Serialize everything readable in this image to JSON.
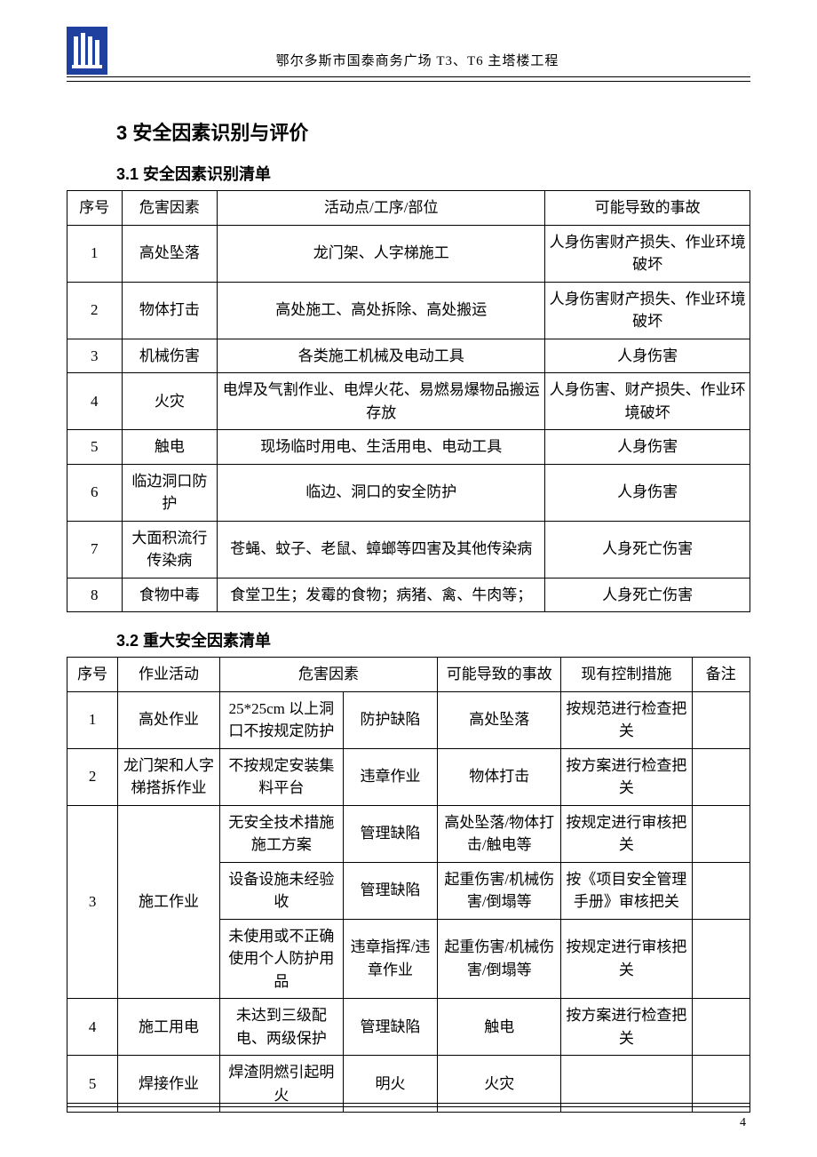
{
  "header": {
    "title": "鄂尔多斯市国泰商务广场 T3、T6 主塔楼工程",
    "logo_bg": "#2040a0",
    "logo_fg": "#ffffff"
  },
  "section_3": "3 安全因素识别与评价",
  "section_3_1": "3.1 安全因素识别清单",
  "section_3_2": "3.2 重大安全因素清单",
  "table1": {
    "columns": [
      "序号",
      "危害因素",
      "活动点/工序/部位",
      "可能导致的事故"
    ],
    "col_widths": [
      "8%",
      "14%",
      "48%",
      "30%"
    ],
    "rows": [
      [
        "1",
        "高处坠落",
        "龙门架、人字梯施工",
        "人身伤害财产损失、作业环境破坏"
      ],
      [
        "2",
        "物体打击",
        "高处施工、高处拆除、高处搬运",
        "人身伤害财产损失、作业环境破坏"
      ],
      [
        "3",
        "机械伤害",
        "各类施工机械及电动工具",
        "人身伤害"
      ],
      [
        "4",
        "火灾",
        "电焊及气割作业、电焊火花、易燃易爆物品搬运存放",
        "人身伤害、财产损失、作业环境破坏"
      ],
      [
        "5",
        "触电",
        "现场临时用电、生活用电、电动工具",
        "人身伤害"
      ],
      [
        "6",
        "临边洞口防护",
        "临边、洞口的安全防护",
        "人身伤害"
      ],
      [
        "7",
        "大面积流行传染病",
        "苍蝇、蚊子、老鼠、蟑螂等四害及其他传染病",
        "人身死亡伤害"
      ],
      [
        "8",
        "食物中毒",
        "食堂卫生；发霉的食物；病猪、禽、牛肉等；",
        "人身死亡伤害"
      ]
    ]
  },
  "table2": {
    "columns": [
      "序号",
      "作业活动",
      "危害因素",
      "可能导致的事故",
      "现有控制措施",
      "备注"
    ],
    "hazard_span_label": "危害因素",
    "col_widths": [
      "7%",
      "14%",
      "17%",
      "13%",
      "17%",
      "18%",
      "8%"
    ],
    "rows": [
      {
        "seq": "1",
        "activity": "高处作业",
        "h1": "25*25cm 以上洞口不按规定防护",
        "h2": "防护缺陷",
        "acc": "高处坠落",
        "ctrl": "按规范进行检查把关",
        "note": ""
      },
      {
        "seq": "2",
        "activity": "龙门架和人字梯搭拆作业",
        "h1": "不按规定安装集料平台",
        "h2": "违章作业",
        "acc": "物体打击",
        "ctrl": "按方案进行检查把关",
        "note": ""
      }
    ],
    "group3": {
      "seq": "3",
      "activity": "施工作业",
      "subrows": [
        {
          "h1": "无安全技术措施施工方案",
          "h2": "管理缺陷",
          "acc": "高处坠落/物体打击/触电等",
          "ctrl": "按规定进行审核把关",
          "note": ""
        },
        {
          "h1": "设备设施未经验收",
          "h2": "管理缺陷",
          "acc": "起重伤害/机械伤害/倒塌等",
          "ctrl": "按《项目安全管理手册》审核把关",
          "note": ""
        },
        {
          "h1": "未使用或不正确使用个人防护用品",
          "h2": "违章指挥/违章作业",
          "acc": "起重伤害/机械伤害/倒塌等",
          "ctrl": "按规定进行审核把关",
          "note": ""
        }
      ]
    },
    "tail": [
      {
        "seq": "4",
        "activity": "施工用电",
        "h1": "未达到三级配电、两级保护",
        "h2": "管理缺陷",
        "acc": "触电",
        "ctrl": "按方案进行检查把关",
        "note": ""
      },
      {
        "seq": "5",
        "activity": "焊接作业",
        "h1": "焊渣阴燃引起明火",
        "h2": "明火",
        "acc": "火灾",
        "ctrl": "",
        "note": ""
      }
    ]
  },
  "page_number": "4",
  "style": {
    "border_color": "#000000",
    "body_fontsize": 17,
    "heading_fontsize": 22,
    "subheading_fontsize": 18
  }
}
